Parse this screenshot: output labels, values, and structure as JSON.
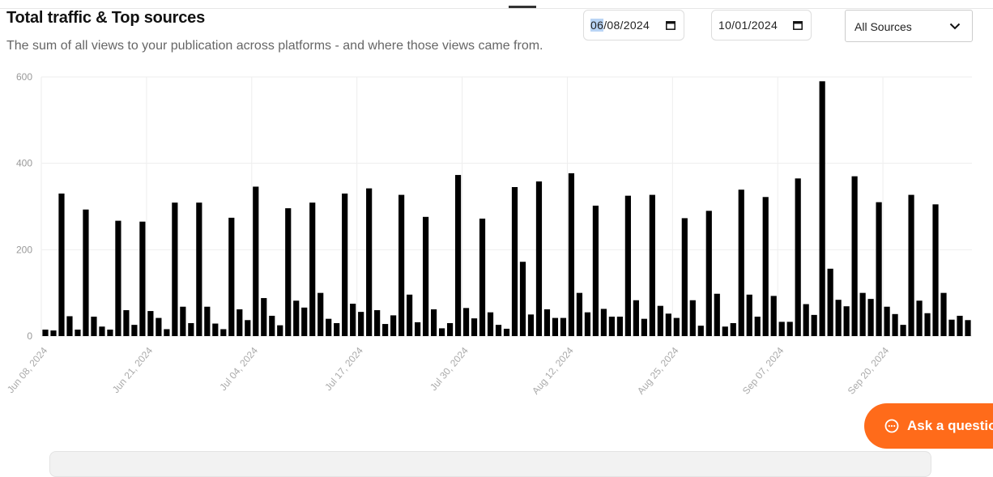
{
  "header": {
    "title": "Total traffic & Top sources",
    "subtitle": "The sum of all views to your publication across platforms - and where those views came from."
  },
  "filters": {
    "start_date_selected": "06",
    "start_date_rest": "/08/2024",
    "end_date": "10/01/2024",
    "source_select": "All Sources"
  },
  "assistant": {
    "label": "Ask a questio"
  },
  "colors": {
    "bar": "#000000",
    "accent": "#ff6b1a",
    "grid": "#eeeeee"
  },
  "chart_data": {
    "type": "bar",
    "title": "",
    "xlabel": "",
    "ylabel": "",
    "ylim": [
      0,
      600
    ],
    "yticks": [
      0,
      200,
      400,
      600
    ],
    "grid": true,
    "xtick_labels": [
      "Jun 08, 2024",
      "Jun 21, 2024",
      "Jul 04, 2024",
      "Jul 17, 2024",
      "Jul 30, 2024",
      "Aug 12, 2024",
      "Aug 25, 2024",
      "Sep 07, 2024",
      "Sep 20, 2024"
    ],
    "xtick_every": 13,
    "start": "2024-06-08",
    "end": "2024-10-01",
    "values": [
      15,
      13,
      330,
      46,
      15,
      293,
      45,
      22,
      15,
      267,
      60,
      26,
      265,
      58,
      42,
      16,
      309,
      68,
      30,
      309,
      68,
      29,
      16,
      274,
      62,
      37,
      346,
      88,
      47,
      25,
      296,
      82,
      66,
      309,
      100,
      40,
      30,
      330,
      75,
      56,
      342,
      60,
      28,
      48,
      327,
      96,
      32,
      276,
      62,
      18,
      30,
      373,
      65,
      41,
      272,
      55,
      26,
      17,
      345,
      172,
      50,
      358,
      62,
      42,
      42,
      377,
      100,
      55,
      302,
      63,
      45,
      45,
      325,
      83,
      40,
      327,
      70,
      52,
      42,
      273,
      83,
      24,
      290,
      98,
      22,
      30,
      339,
      96,
      45,
      322,
      93,
      33,
      33,
      365,
      74,
      49,
      590,
      156,
      84,
      69,
      370,
      100,
      86,
      310,
      68,
      51,
      26,
      327,
      82,
      53,
      305,
      100,
      38,
      47,
      37
    ]
  }
}
